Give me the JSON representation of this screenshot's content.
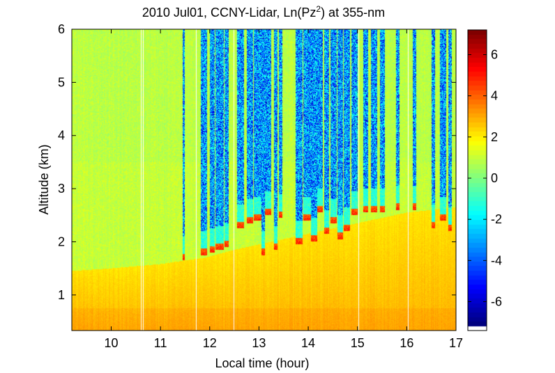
{
  "chart_data": {
    "type": "heatmap",
    "title": "2010 Jul01, CCNY-Lidar, Ln(Pz",
    "title_superscript": "2",
    "title_suffix": ") at 355-nm",
    "xlabel": "Local time (hour)",
    "ylabel": "Altitude (km)",
    "xlim": [
      9.2,
      17.0
    ],
    "ylim": [
      0.33,
      6.0
    ],
    "x_ticks": [
      10,
      11,
      12,
      13,
      14,
      15,
      16,
      17
    ],
    "x_tick_labels": [
      "10",
      "11",
      "12",
      "13",
      "14",
      "15",
      "16",
      "17"
    ],
    "y_ticks": [
      1,
      2,
      3,
      4,
      5,
      6
    ],
    "y_tick_labels": [
      "1",
      "2",
      "3",
      "4",
      "5",
      "6"
    ],
    "colorbar": {
      "colormap": "jet",
      "range": [
        -7.2,
        7.2
      ],
      "ticks": [
        -6,
        -4,
        -2,
        0,
        2,
        4,
        6
      ],
      "tick_labels": [
        "-6",
        "-4",
        "-2",
        "0",
        "2",
        "4",
        "6"
      ]
    },
    "field_levels": {
      "free_troposphere_clear": 1.0,
      "boundary_layer_upper": 2.2,
      "boundary_layer_lower": 2.9,
      "cloud_base_peak": 5.0,
      "above_cloud_noise_low": -6.5,
      "above_cloud_noise_high": -1.5
    },
    "boundary_layer_top_km": {
      "time_hour": [
        9.2,
        10.0,
        11.0,
        11.5,
        11.9,
        12.5,
        13.0,
        13.5,
        14.0,
        14.5,
        15.0,
        15.5,
        16.0,
        16.5,
        17.0
      ],
      "height": [
        1.45,
        1.5,
        1.58,
        1.65,
        1.7,
        1.85,
        1.95,
        2.05,
        2.15,
        2.25,
        2.35,
        2.45,
        2.55,
        2.6,
        2.65
      ]
    },
    "cloud_events": [
      {
        "t0": 11.45,
        "t1": 11.5,
        "base_km": 1.65
      },
      {
        "t0": 11.82,
        "t1": 11.95,
        "base_km": 1.75
      },
      {
        "t0": 12.0,
        "t1": 12.1,
        "base_km": 1.8
      },
      {
        "t0": 12.12,
        "t1": 12.28,
        "base_km": 1.85
      },
      {
        "t0": 12.3,
        "t1": 12.38,
        "base_km": 1.9
      },
      {
        "t0": 12.55,
        "t1": 12.7,
        "base_km": 2.25
      },
      {
        "t0": 12.75,
        "t1": 12.88,
        "base_km": 2.35
      },
      {
        "t0": 12.9,
        "t1": 13.05,
        "base_km": 2.4
      },
      {
        "t0": 12.95,
        "t1": 13.12,
        "base_km": 1.75
      },
      {
        "t0": 13.12,
        "t1": 13.25,
        "base_km": 2.5
      },
      {
        "t0": 13.3,
        "t1": 13.38,
        "base_km": 1.85
      },
      {
        "t0": 13.4,
        "t1": 13.48,
        "base_km": 2.45
      },
      {
        "t0": 13.75,
        "t1": 13.88,
        "base_km": 1.95
      },
      {
        "t0": 13.9,
        "t1": 14.05,
        "base_km": 2.4
      },
      {
        "t0": 14.05,
        "t1": 14.18,
        "base_km": 2.0
      },
      {
        "t0": 14.18,
        "t1": 14.3,
        "base_km": 2.55
      },
      {
        "t0": 14.32,
        "t1": 14.42,
        "base_km": 2.15
      },
      {
        "t0": 14.45,
        "t1": 14.58,
        "base_km": 2.35
      },
      {
        "t0": 14.6,
        "t1": 14.7,
        "base_km": 2.05
      },
      {
        "t0": 14.72,
        "t1": 14.85,
        "base_km": 2.2
      },
      {
        "t0": 14.88,
        "t1": 15.0,
        "base_km": 2.5
      },
      {
        "t0": 15.12,
        "t1": 15.22,
        "base_km": 2.55
      },
      {
        "t0": 15.28,
        "t1": 15.4,
        "base_km": 2.55
      },
      {
        "t0": 15.45,
        "t1": 15.55,
        "base_km": 2.55
      },
      {
        "t0": 15.78,
        "t1": 15.85,
        "base_km": 2.6
      },
      {
        "t0": 16.12,
        "t1": 16.2,
        "base_km": 2.6
      },
      {
        "t0": 16.5,
        "t1": 16.58,
        "base_km": 2.25
      },
      {
        "t0": 16.68,
        "t1": 16.8,
        "base_km": 2.4
      },
      {
        "t0": 16.85,
        "t1": 16.92,
        "base_km": 2.2
      }
    ],
    "data_gaps_hour": [
      10.6,
      10.65,
      11.72,
      12.48,
      15.02,
      16.02
    ]
  }
}
